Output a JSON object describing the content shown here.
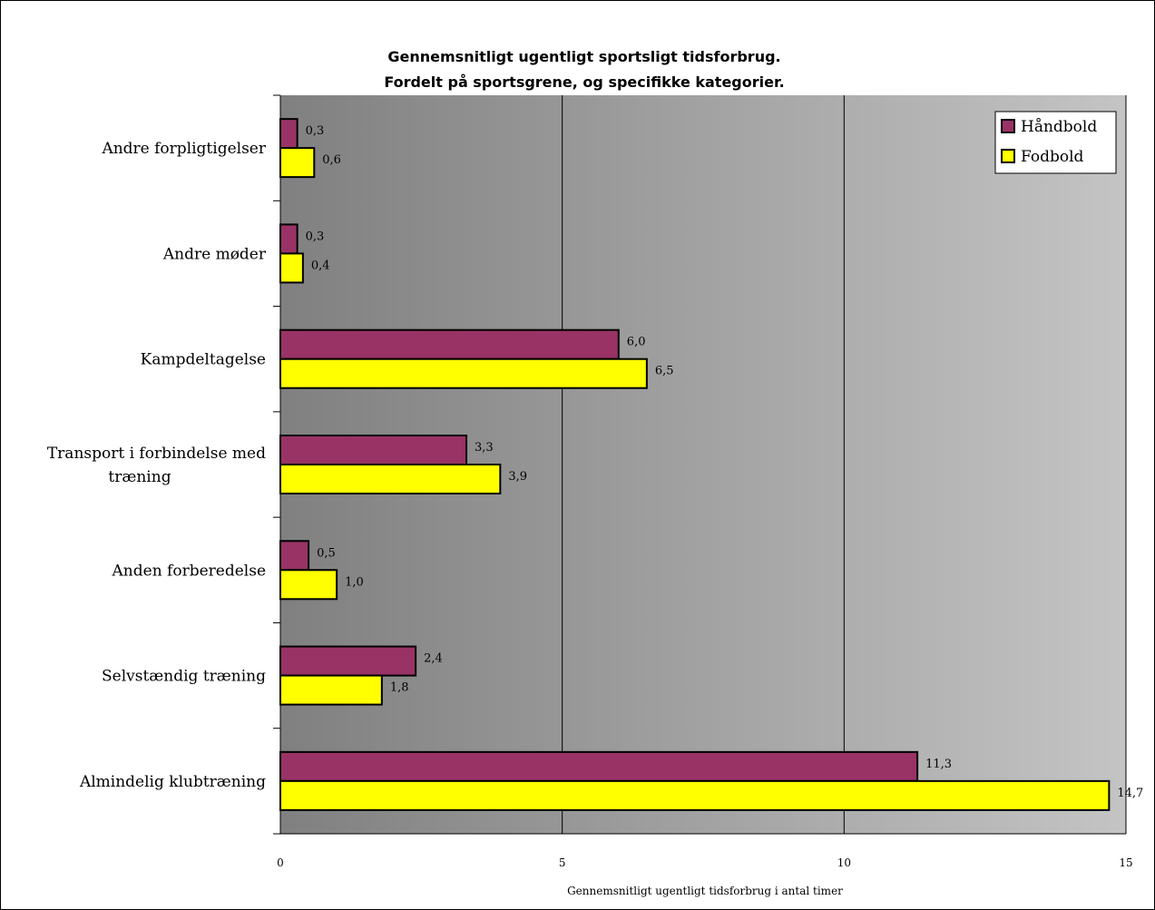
{
  "chart_data": {
    "type": "bar",
    "orientation": "horizontal",
    "title": [
      "Gennemsnitligt ugentligt sportsligt tidsforbrug.",
      "Fordelt på sportsgrene, og specifikke kategorier."
    ],
    "xlabel": "Gennemsnitligt ugentligt tidsforbrug i antal timer",
    "ylabel": "",
    "xlim": [
      0,
      15
    ],
    "xticks": [
      0,
      5,
      10,
      15
    ],
    "grid": true,
    "legend_position": "top-right",
    "categories": [
      "Andre forpligtigelser",
      "Andre møder",
      "Kampdeltagelse",
      "Transport i forbindelse med træning",
      "Anden forberedelse",
      "Selvstændig træning",
      "Almindelig klubtræning"
    ],
    "category_lines": [
      [
        "Andre forpligtigelser"
      ],
      [
        "Andre møder"
      ],
      [
        "Kampdeltagelse"
      ],
      [
        "Transport i forbindelse med",
        "træning"
      ],
      [
        "Anden forberedelse"
      ],
      [
        "Selvstændig træning"
      ],
      [
        "Almindelig klubtræning"
      ]
    ],
    "series": [
      {
        "name": "Håndbold",
        "color": "#993366",
        "values": [
          0.3,
          0.3,
          6.0,
          3.3,
          0.5,
          2.4,
          11.3
        ],
        "labels": [
          "0,3",
          "0,3",
          "6,0",
          "3,3",
          "0,5",
          "2,4",
          "11,3"
        ]
      },
      {
        "name": "Fodbold",
        "color": "#ffff00",
        "values": [
          0.6,
          0.4,
          6.5,
          3.9,
          1.0,
          1.8,
          14.7
        ],
        "labels": [
          "0,6",
          "0,4",
          "6,5",
          "3,9",
          "1,0",
          "1,8",
          "14,7"
        ]
      }
    ]
  }
}
